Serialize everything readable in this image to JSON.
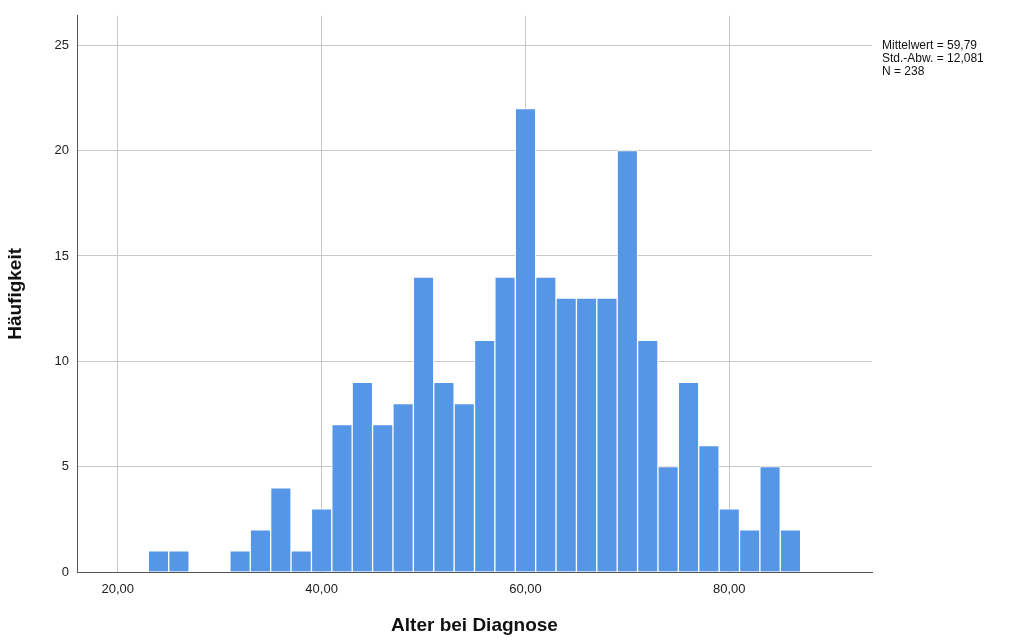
{
  "chart_data": {
    "type": "histogram",
    "xlabel": "Alter bei Diagnose",
    "ylabel": "Häufigkeit",
    "bins": [
      23,
      25,
      27,
      29,
      31,
      33,
      35,
      37,
      39,
      41,
      43,
      45,
      47,
      49,
      51,
      53,
      55,
      57,
      59,
      61,
      63,
      65,
      67,
      69,
      71,
      73,
      75,
      77,
      79,
      81,
      83,
      85,
      87
    ],
    "values": [
      1,
      1,
      0,
      0,
      1,
      2,
      4,
      1,
      3,
      7,
      9,
      7,
      8,
      14,
      9,
      8,
      11,
      14,
      22,
      14,
      13,
      13,
      13,
      20,
      11,
      5,
      9,
      6,
      3,
      2,
      5,
      2
    ],
    "color": "#5596e6",
    "xlim": [
      16,
      94
    ],
    "xticks": [
      {
        "value": 20,
        "label": "20,00"
      },
      {
        "value": 40,
        "label": "40,00"
      },
      {
        "value": 60,
        "label": "60,00"
      },
      {
        "value": 80,
        "label": "80,00"
      }
    ],
    "ylim": [
      0,
      26.4
    ],
    "yticks": [
      0,
      5,
      10,
      15,
      20,
      25
    ],
    "grid": true,
    "annotations": [
      "Mittelwert = 59,79",
      "Std.-Abw. = 12,081",
      "N = 238"
    ]
  }
}
